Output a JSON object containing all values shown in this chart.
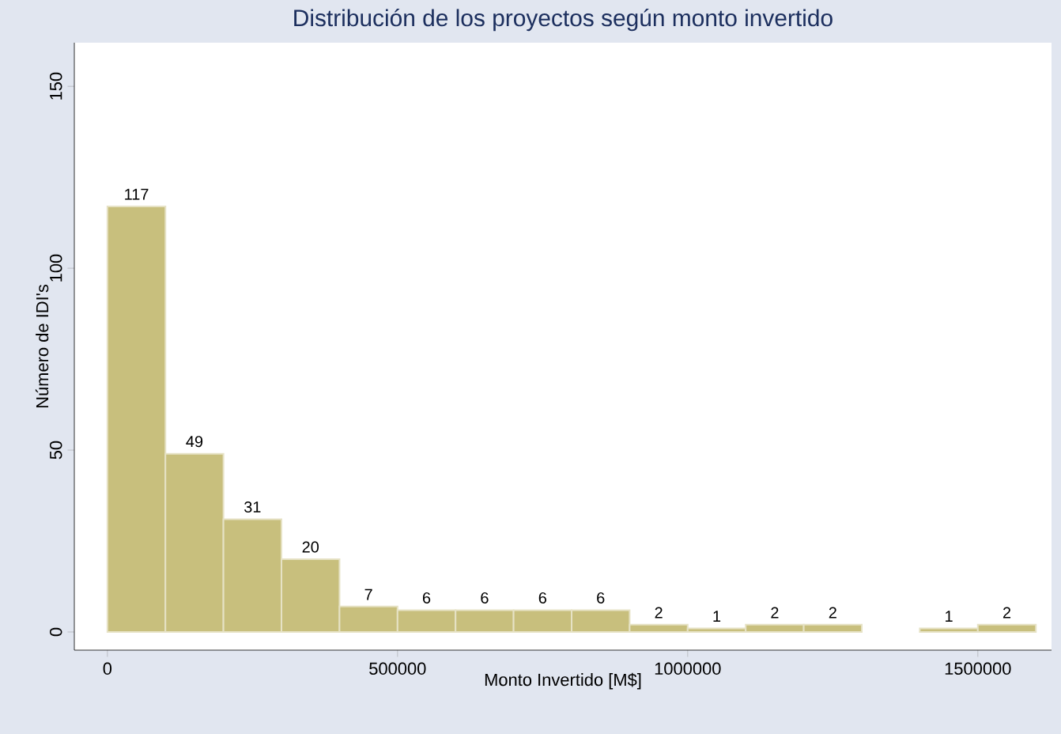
{
  "chart_data": {
    "type": "histogram",
    "title": "Distribución de los proyectos según monto invertido",
    "xlabel": "Monto Invertido [M$]",
    "ylabel": "Número de IDI's",
    "bins": [
      0,
      100000,
      200000,
      300000,
      400000,
      500000,
      600000,
      700000,
      800000,
      900000,
      1000000,
      1100000,
      1200000,
      1300000,
      1400000,
      1500000,
      1600000
    ],
    "values": [
      117,
      49,
      31,
      20,
      7,
      6,
      6,
      6,
      6,
      2,
      1,
      2,
      2,
      0,
      1,
      2
    ],
    "value_labels": [
      "117",
      "49",
      "31",
      "20",
      "7",
      "6",
      "6",
      "6",
      "6",
      "2",
      "1",
      "2",
      "2",
      null,
      "1",
      "2"
    ],
    "color": "#c8bf7d",
    "xlim": [
      -57000,
      1627000
    ],
    "ylim": [
      -5,
      162
    ],
    "xticks": [
      0,
      500000,
      1000000,
      1500000
    ],
    "yticks": [
      0,
      50,
      100,
      150
    ],
    "grid": false
  }
}
